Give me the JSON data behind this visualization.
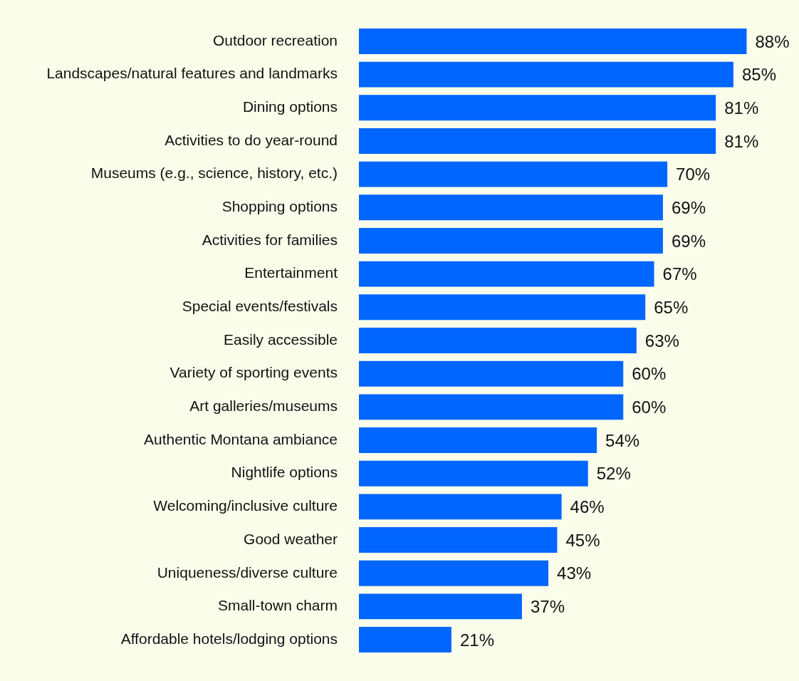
{
  "chart_data": {
    "type": "bar",
    "orientation": "horizontal",
    "categories": [
      "Outdoor recreation",
      "Landscapes/natural features and landmarks",
      "Dining options",
      "Activities to do year-round",
      "Museums (e.g., science, history, etc.)",
      "Shopping options",
      "Activities for families",
      "Entertainment",
      "Special events/festivals",
      "Easily accessible",
      "Variety of sporting events",
      "Art galleries/museums",
      "Authentic Montana ambiance",
      "Nightlife options",
      "Welcoming/inclusive culture",
      "Good weather",
      "Uniqueness/diverse culture",
      "Small-town charm",
      "Affordable hotels/lodging options"
    ],
    "values": [
      88,
      85,
      81,
      81,
      70,
      69,
      69,
      67,
      65,
      63,
      60,
      60,
      54,
      52,
      46,
      45,
      43,
      37,
      21
    ],
    "value_labels": [
      "88%",
      "85%",
      "81%",
      "81%",
      "70%",
      "69%",
      "69%",
      "67%",
      "65%",
      "63%",
      "60%",
      "60%",
      "54%",
      "52%",
      "46%",
      "45%",
      "43%",
      "37%",
      "21%"
    ],
    "color": "#0066ff",
    "grid": false,
    "legend": false,
    "tick_labels": "y"
  }
}
